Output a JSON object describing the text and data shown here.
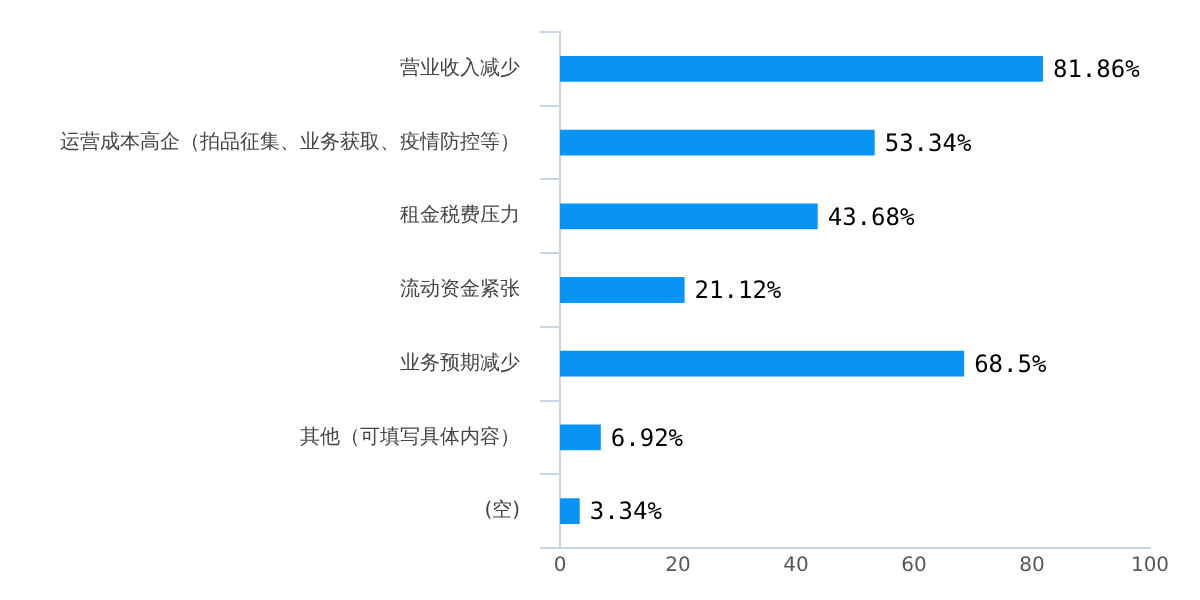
{
  "chart_data": {
    "type": "bar",
    "orientation": "horizontal",
    "categories": [
      "营业收入减少",
      "运营成本高企（拍品征集、业务获取、疫情防控等）",
      "租金税费压力",
      "流动资金紧张",
      "业务预期减少",
      "其他（可填写具体内容）",
      "(空)"
    ],
    "values": [
      81.86,
      53.34,
      43.68,
      21.12,
      68.5,
      6.92,
      3.34
    ],
    "value_labels": [
      "81.86%",
      "53.34%",
      "43.68%",
      "21.12%",
      "68.5%",
      "6.92%",
      "3.34%"
    ],
    "color": "#0994f5",
    "xlim": [
      0,
      100
    ],
    "xticks": [
      0,
      20,
      40,
      60,
      80,
      100
    ],
    "grid": false,
    "legend": false
  }
}
